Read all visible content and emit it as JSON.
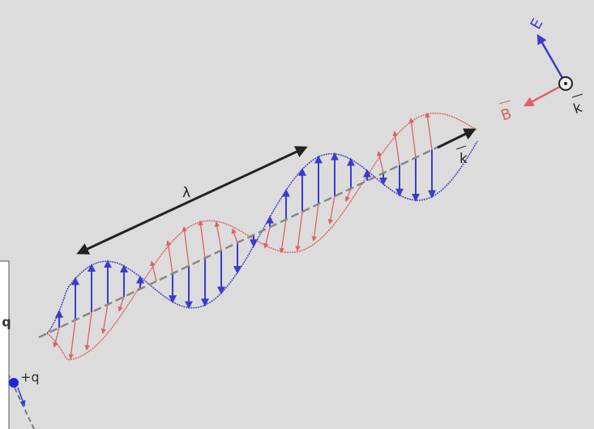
{
  "labels": {
    "wavelength": "λ",
    "electric_field": "E",
    "magnetic_field": "B",
    "wave_vector": "k",
    "legend_wave_vector": "k",
    "charge": "+q",
    "partial_charge": "q"
  }
}
